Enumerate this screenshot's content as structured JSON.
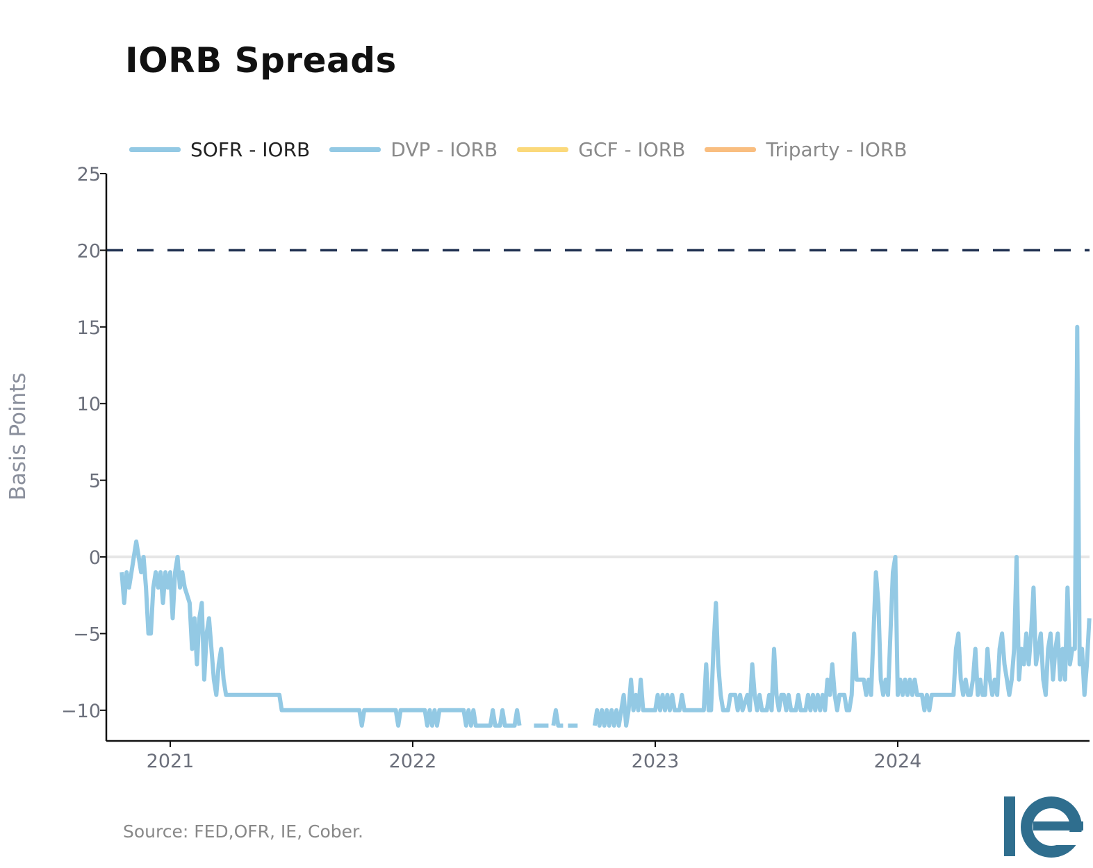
{
  "title": "IORB Spreads",
  "legend": [
    {
      "label": "SOFR - IORB",
      "color": "#93c9e4",
      "active": true
    },
    {
      "label": "DVP - IORB",
      "color": "#93c9e4",
      "active": false
    },
    {
      "label": "GCF - IORB",
      "color": "#fbd97b",
      "active": false
    },
    {
      "label": "Triparty - IORB",
      "color": "#f9be80",
      "active": false
    }
  ],
  "source": "Source: FED,OFR, IE, Cober.",
  "logo_text": "IE",
  "chart_data": {
    "type": "line",
    "title": "IORB Spreads",
    "xlabel": "",
    "ylabel": "Basis Points",
    "ylim": [
      -12,
      25
    ],
    "xlim": [
      2020.74,
      2024.79
    ],
    "yticks": [
      -10,
      -5,
      0,
      5,
      10,
      15,
      20,
      25
    ],
    "ytick_labels": [
      "−10",
      "−5",
      "0",
      "5",
      "10",
      "15",
      "20",
      "25"
    ],
    "xticks": [
      2021,
      2022,
      2023,
      2024
    ],
    "xtick_labels": [
      "2021",
      "2022",
      "2023",
      "2024"
    ],
    "reference_lines": [
      {
        "y": 20,
        "style": "dashed",
        "color": "#1f3050"
      },
      {
        "y": 0,
        "style": "solid",
        "color": "#e6e6e6"
      }
    ],
    "series": [
      {
        "name": "SOFR - IORB",
        "color": "#93c9e4",
        "segments": [
          [
            [
              2020.8,
              -1
            ],
            [
              2020.81,
              -3
            ],
            [
              2020.82,
              -1
            ],
            [
              2020.83,
              -2
            ],
            [
              2020.84,
              -1
            ],
            [
              2020.85,
              0
            ],
            [
              2020.86,
              1
            ],
            [
              2020.87,
              0
            ],
            [
              2020.88,
              -1
            ],
            [
              2020.89,
              0
            ],
            [
              2020.9,
              -2
            ],
            [
              2020.91,
              -5
            ],
            [
              2020.92,
              -5
            ],
            [
              2020.93,
              -2
            ],
            [
              2020.94,
              -1
            ],
            [
              2020.95,
              -2
            ],
            [
              2020.96,
              -1
            ],
            [
              2020.97,
              -3
            ],
            [
              2020.98,
              -1
            ],
            [
              2020.99,
              -2
            ],
            [
              2021.0,
              -1
            ],
            [
              2021.01,
              -4
            ],
            [
              2021.02,
              -1
            ],
            [
              2021.03,
              0
            ],
            [
              2021.04,
              -2
            ],
            [
              2021.05,
              -1
            ],
            [
              2021.06,
              -2
            ],
            [
              2021.08,
              -3
            ],
            [
              2021.09,
              -6
            ],
            [
              2021.1,
              -4
            ],
            [
              2021.11,
              -7
            ],
            [
              2021.12,
              -4
            ],
            [
              2021.13,
              -3
            ],
            [
              2021.14,
              -8
            ],
            [
              2021.15,
              -5
            ],
            [
              2021.16,
              -4
            ],
            [
              2021.17,
              -6
            ],
            [
              2021.18,
              -8
            ],
            [
              2021.19,
              -9
            ],
            [
              2021.2,
              -7
            ],
            [
              2021.21,
              -6
            ],
            [
              2021.22,
              -8
            ],
            [
              2021.23,
              -9
            ],
            [
              2021.45,
              -9
            ],
            [
              2021.46,
              -10
            ],
            [
              2021.78,
              -10
            ],
            [
              2021.79,
              -11
            ],
            [
              2021.8,
              -10
            ],
            [
              2021.93,
              -10
            ],
            [
              2021.94,
              -11
            ],
            [
              2021.95,
              -10
            ],
            [
              2022.05,
              -10
            ],
            [
              2022.06,
              -11
            ],
            [
              2022.07,
              -10
            ],
            [
              2022.08,
              -11
            ],
            [
              2022.09,
              -10
            ],
            [
              2022.1,
              -11
            ],
            [
              2022.11,
              -10
            ],
            [
              2022.21,
              -10
            ],
            [
              2022.22,
              -11
            ],
            [
              2022.23,
              -10
            ],
            [
              2022.24,
              -11
            ],
            [
              2022.25,
              -10
            ],
            [
              2022.26,
              -11
            ],
            [
              2022.32,
              -11
            ],
            [
              2022.33,
              -10
            ],
            [
              2022.34,
              -11
            ],
            [
              2022.36,
              -11
            ],
            [
              2022.37,
              -10
            ],
            [
              2022.38,
              -11
            ],
            [
              2022.42,
              -11
            ],
            [
              2022.43,
              -10
            ],
            [
              2022.44,
              -11
            ]
          ],
          [
            [
              2022.5,
              -11
            ],
            [
              2022.56,
              -11
            ]
          ],
          [
            [
              2022.58,
              -11
            ],
            [
              2022.59,
              -10
            ],
            [
              2022.6,
              -11
            ],
            [
              2022.62,
              -11
            ]
          ],
          [
            [
              2022.64,
              -11
            ],
            [
              2022.68,
              -11
            ]
          ],
          [
            [
              2022.75,
              -11
            ],
            [
              2022.76,
              -10
            ],
            [
              2022.77,
              -11
            ],
            [
              2022.78,
              -10
            ],
            [
              2022.79,
              -11
            ],
            [
              2022.8,
              -10
            ],
            [
              2022.81,
              -11
            ],
            [
              2022.82,
              -10
            ],
            [
              2022.83,
              -11
            ],
            [
              2022.84,
              -10
            ],
            [
              2022.85,
              -11
            ],
            [
              2022.86,
              -10
            ],
            [
              2022.87,
              -9
            ],
            [
              2022.88,
              -11
            ],
            [
              2022.89,
              -10
            ],
            [
              2022.9,
              -8
            ],
            [
              2022.91,
              -10
            ],
            [
              2022.92,
              -9
            ],
            [
              2022.93,
              -10
            ],
            [
              2022.94,
              -8
            ],
            [
              2022.95,
              -10
            ],
            [
              2023.0,
              -10
            ],
            [
              2023.01,
              -9
            ],
            [
              2023.02,
              -10
            ],
            [
              2023.03,
              -9
            ],
            [
              2023.04,
              -10
            ],
            [
              2023.05,
              -9
            ],
            [
              2023.06,
              -10
            ],
            [
              2023.07,
              -9
            ],
            [
              2023.08,
              -10
            ],
            [
              2023.1,
              -10
            ],
            [
              2023.11,
              -9
            ],
            [
              2023.12,
              -10
            ],
            [
              2023.2,
              -10
            ],
            [
              2023.21,
              -7
            ],
            [
              2023.22,
              -10
            ],
            [
              2023.23,
              -10
            ],
            [
              2023.24,
              -6
            ],
            [
              2023.25,
              -3
            ],
            [
              2023.26,
              -7
            ],
            [
              2023.27,
              -9
            ],
            [
              2023.28,
              -10
            ],
            [
              2023.3,
              -10
            ],
            [
              2023.31,
              -9
            ],
            [
              2023.33,
              -9
            ],
            [
              2023.34,
              -10
            ],
            [
              2023.35,
              -9
            ],
            [
              2023.36,
              -10
            ],
            [
              2023.38,
              -9
            ],
            [
              2023.39,
              -10
            ],
            [
              2023.4,
              -7
            ],
            [
              2023.41,
              -9
            ],
            [
              2023.42,
              -10
            ],
            [
              2023.43,
              -9
            ],
            [
              2023.44,
              -10
            ],
            [
              2023.46,
              -10
            ],
            [
              2023.47,
              -9
            ],
            [
              2023.48,
              -10
            ],
            [
              2023.49,
              -6
            ],
            [
              2023.5,
              -9
            ],
            [
              2023.51,
              -10
            ],
            [
              2023.52,
              -9
            ],
            [
              2023.53,
              -9
            ],
            [
              2023.54,
              -10
            ],
            [
              2023.55,
              -9
            ],
            [
              2023.56,
              -10
            ],
            [
              2023.58,
              -10
            ],
            [
              2023.59,
              -9
            ],
            [
              2023.6,
              -10
            ],
            [
              2023.62,
              -10
            ],
            [
              2023.63,
              -9
            ],
            [
              2023.64,
              -10
            ],
            [
              2023.65,
              -9
            ],
            [
              2023.66,
              -10
            ],
            [
              2023.67,
              -9
            ],
            [
              2023.68,
              -10
            ],
            [
              2023.69,
              -9
            ],
            [
              2023.7,
              -10
            ],
            [
              2023.71,
              -8
            ],
            [
              2023.72,
              -9
            ],
            [
              2023.73,
              -7
            ],
            [
              2023.74,
              -9
            ],
            [
              2023.75,
              -10
            ],
            [
              2023.76,
              -9
            ],
            [
              2023.78,
              -9
            ],
            [
              2023.79,
              -10
            ],
            [
              2023.8,
              -10
            ],
            [
              2023.81,
              -9
            ],
            [
              2023.82,
              -5
            ],
            [
              2023.83,
              -8
            ],
            [
              2023.86,
              -8
            ],
            [
              2023.87,
              -9
            ],
            [
              2023.88,
              -8
            ],
            [
              2023.89,
              -9
            ],
            [
              2023.9,
              -5
            ],
            [
              2023.91,
              -1
            ],
            [
              2023.92,
              -3
            ],
            [
              2023.93,
              -8
            ],
            [
              2023.94,
              -9
            ],
            [
              2023.95,
              -8
            ],
            [
              2023.96,
              -9
            ],
            [
              2023.97,
              -5
            ],
            [
              2023.98,
              -1
            ],
            [
              2023.99,
              0
            ],
            [
              2024.0,
              -9
            ],
            [
              2024.01,
              -8
            ],
            [
              2024.02,
              -9
            ],
            [
              2024.03,
              -8
            ],
            [
              2024.04,
              -9
            ],
            [
              2024.05,
              -8
            ],
            [
              2024.06,
              -9
            ],
            [
              2024.07,
              -8
            ],
            [
              2024.08,
              -9
            ],
            [
              2024.1,
              -9
            ],
            [
              2024.11,
              -10
            ],
            [
              2024.12,
              -9
            ],
            [
              2024.13,
              -10
            ],
            [
              2024.14,
              -9
            ],
            [
              2024.23,
              -9
            ],
            [
              2024.24,
              -6
            ],
            [
              2024.25,
              -5
            ],
            [
              2024.26,
              -8
            ],
            [
              2024.27,
              -9
            ],
            [
              2024.28,
              -8
            ],
            [
              2024.29,
              -9
            ],
            [
              2024.3,
              -9
            ],
            [
              2024.31,
              -8
            ],
            [
              2024.32,
              -6
            ],
            [
              2024.33,
              -9
            ],
            [
              2024.34,
              -8
            ],
            [
              2024.35,
              -9
            ],
            [
              2024.36,
              -9
            ],
            [
              2024.37,
              -6
            ],
            [
              2024.38,
              -8
            ],
            [
              2024.39,
              -9
            ],
            [
              2024.4,
              -8
            ],
            [
              2024.41,
              -9
            ],
            [
              2024.42,
              -6
            ],
            [
              2024.43,
              -5
            ],
            [
              2024.44,
              -7
            ],
            [
              2024.45,
              -8
            ],
            [
              2024.46,
              -9
            ],
            [
              2024.47,
              -8
            ],
            [
              2024.48,
              -6
            ],
            [
              2024.49,
              0
            ],
            [
              2024.5,
              -8
            ],
            [
              2024.51,
              -6
            ],
            [
              2024.52,
              -7
            ],
            [
              2024.53,
              -5
            ],
            [
              2024.54,
              -7
            ],
            [
              2024.55,
              -5
            ],
            [
              2024.56,
              -2
            ],
            [
              2024.57,
              -7
            ],
            [
              2024.58,
              -6
            ],
            [
              2024.59,
              -5
            ],
            [
              2024.6,
              -8
            ],
            [
              2024.61,
              -9
            ],
            [
              2024.62,
              -6
            ],
            [
              2024.63,
              -5
            ],
            [
              2024.64,
              -8
            ],
            [
              2024.65,
              -6
            ],
            [
              2024.66,
              -5
            ],
            [
              2024.67,
              -8
            ],
            [
              2024.68,
              -6
            ],
            [
              2024.69,
              -8
            ],
            [
              2024.7,
              -2
            ],
            [
              2024.71,
              -7
            ],
            [
              2024.72,
              -6
            ],
            [
              2024.73,
              -6
            ],
            [
              2024.74,
              15
            ],
            [
              2024.75,
              -7
            ],
            [
              2024.76,
              -6
            ],
            [
              2024.77,
              -9
            ],
            [
              2024.78,
              -7
            ],
            [
              2024.79,
              -4
            ]
          ]
        ]
      }
    ]
  }
}
